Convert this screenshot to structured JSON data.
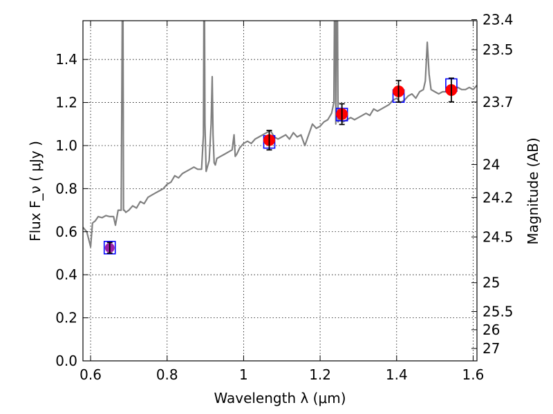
{
  "chart_data": {
    "type": "line",
    "xlabel": "Wavelength  λ (μm)",
    "ylabel": "Flux  F_ν  ( μJy )",
    "y2label": "Magnitude (AB)",
    "xlim": [
      0.58,
      1.61
    ],
    "ylim": [
      0.0,
      1.58
    ],
    "grid": true,
    "x_ticks": [
      0.6,
      0.8,
      1.0,
      1.2,
      1.4,
      1.6
    ],
    "x_tick_labels": [
      "0.6",
      "0.8",
      "1",
      "1.2",
      "1.4",
      "1.6"
    ],
    "y_ticks": [
      0.0,
      0.2,
      0.4,
      0.6,
      0.8,
      1.0,
      1.2,
      1.4
    ],
    "y_tick_labels": [
      "0.0",
      "0.2",
      "0.4",
      "0.6",
      "0.8",
      "1.0",
      "1.2",
      "1.4"
    ],
    "y2_ticks": [
      23.4,
      23.5,
      23.7,
      24,
      24.2,
      24.5,
      25,
      25.5,
      26,
      27
    ],
    "y2_tick_labels": [
      "23.4",
      "23.5",
      "23.7",
      "24",
      "24.2",
      "24.5",
      "25",
      "25.5",
      "26",
      "27"
    ],
    "colors": {
      "spectrum": "#808080",
      "model": "#0000ff",
      "observed": "#ff0000",
      "first_point": "#9b1fa8",
      "errorbar": "#000000",
      "grid": "#000000"
    },
    "spectrum": {
      "x": [
        0.58,
        0.59,
        0.6,
        0.605,
        0.612,
        0.62,
        0.63,
        0.64,
        0.65,
        0.66,
        0.665,
        0.672,
        0.68,
        0.684,
        0.686,
        0.688,
        0.692,
        0.7,
        0.71,
        0.72,
        0.73,
        0.74,
        0.75,
        0.76,
        0.77,
        0.78,
        0.79,
        0.8,
        0.81,
        0.82,
        0.83,
        0.84,
        0.85,
        0.86,
        0.87,
        0.88,
        0.89,
        0.895,
        0.897,
        0.899,
        0.902,
        0.905,
        0.91,
        0.915,
        0.918,
        0.92,
        0.923,
        0.926,
        0.93,
        0.94,
        0.95,
        0.96,
        0.97,
        0.975,
        0.978,
        0.982,
        0.99,
        1.0,
        1.01,
        1.02,
        1.03,
        1.04,
        1.05,
        1.06,
        1.07,
        1.08,
        1.09,
        1.1,
        1.11,
        1.12,
        1.13,
        1.14,
        1.15,
        1.16,
        1.17,
        1.18,
        1.19,
        1.2,
        1.21,
        1.22,
        1.23,
        1.236,
        1.239,
        1.241,
        1.244,
        1.247,
        1.25,
        1.26,
        1.27,
        1.28,
        1.29,
        1.3,
        1.31,
        1.32,
        1.33,
        1.34,
        1.35,
        1.36,
        1.37,
        1.38,
        1.39,
        1.4,
        1.41,
        1.42,
        1.43,
        1.44,
        1.45,
        1.46,
        1.47,
        1.475,
        1.48,
        1.485,
        1.49,
        1.5,
        1.51,
        1.52,
        1.53,
        1.54,
        1.55,
        1.56,
        1.57,
        1.58,
        1.59,
        1.6,
        1.61
      ],
      "y": [
        0.62,
        0.6,
        0.53,
        0.64,
        0.65,
        0.67,
        0.665,
        0.675,
        0.67,
        0.67,
        0.63,
        0.7,
        0.7,
        2.0,
        0.7,
        0.7,
        0.69,
        0.7,
        0.72,
        0.71,
        0.74,
        0.73,
        0.76,
        0.77,
        0.78,
        0.79,
        0.8,
        0.82,
        0.83,
        0.86,
        0.85,
        0.87,
        0.88,
        0.89,
        0.9,
        0.89,
        0.89,
        1.05,
        2.0,
        1.1,
        0.88,
        0.9,
        0.93,
        1.1,
        1.32,
        1.05,
        0.92,
        0.91,
        0.94,
        0.95,
        0.96,
        0.97,
        0.98,
        1.05,
        0.95,
        0.96,
        0.99,
        1.01,
        1.02,
        1.01,
        1.03,
        1.04,
        1.05,
        1.06,
        1.07,
        1.04,
        1.03,
        1.04,
        1.05,
        1.03,
        1.06,
        1.04,
        1.05,
        1.0,
        1.05,
        1.1,
        1.08,
        1.09,
        1.11,
        1.12,
        1.15,
        1.2,
        2.0,
        1.1,
        2.0,
        1.11,
        1.12,
        1.11,
        1.12,
        1.13,
        1.12,
        1.13,
        1.14,
        1.15,
        1.14,
        1.17,
        1.16,
        1.17,
        1.18,
        1.19,
        1.21,
        1.22,
        1.2,
        1.21,
        1.23,
        1.24,
        1.22,
        1.25,
        1.26,
        1.3,
        1.48,
        1.33,
        1.26,
        1.25,
        1.24,
        1.25,
        1.25,
        1.25,
        1.26,
        1.27,
        1.26,
        1.26,
        1.27,
        1.26,
        1.28
      ]
    },
    "model_points": {
      "x": [
        0.65,
        1.067,
        1.257,
        1.405,
        1.543
      ],
      "y": [
        0.526,
        1.017,
        1.144,
        1.23,
        1.281
      ]
    },
    "observed_points": {
      "x": [
        0.65,
        1.067,
        1.257,
        1.405,
        1.543
      ],
      "y": [
        0.525,
        1.025,
        1.146,
        1.252,
        1.258
      ],
      "yerr": [
        0.025,
        0.045,
        0.048,
        0.05,
        0.055
      ]
    }
  }
}
